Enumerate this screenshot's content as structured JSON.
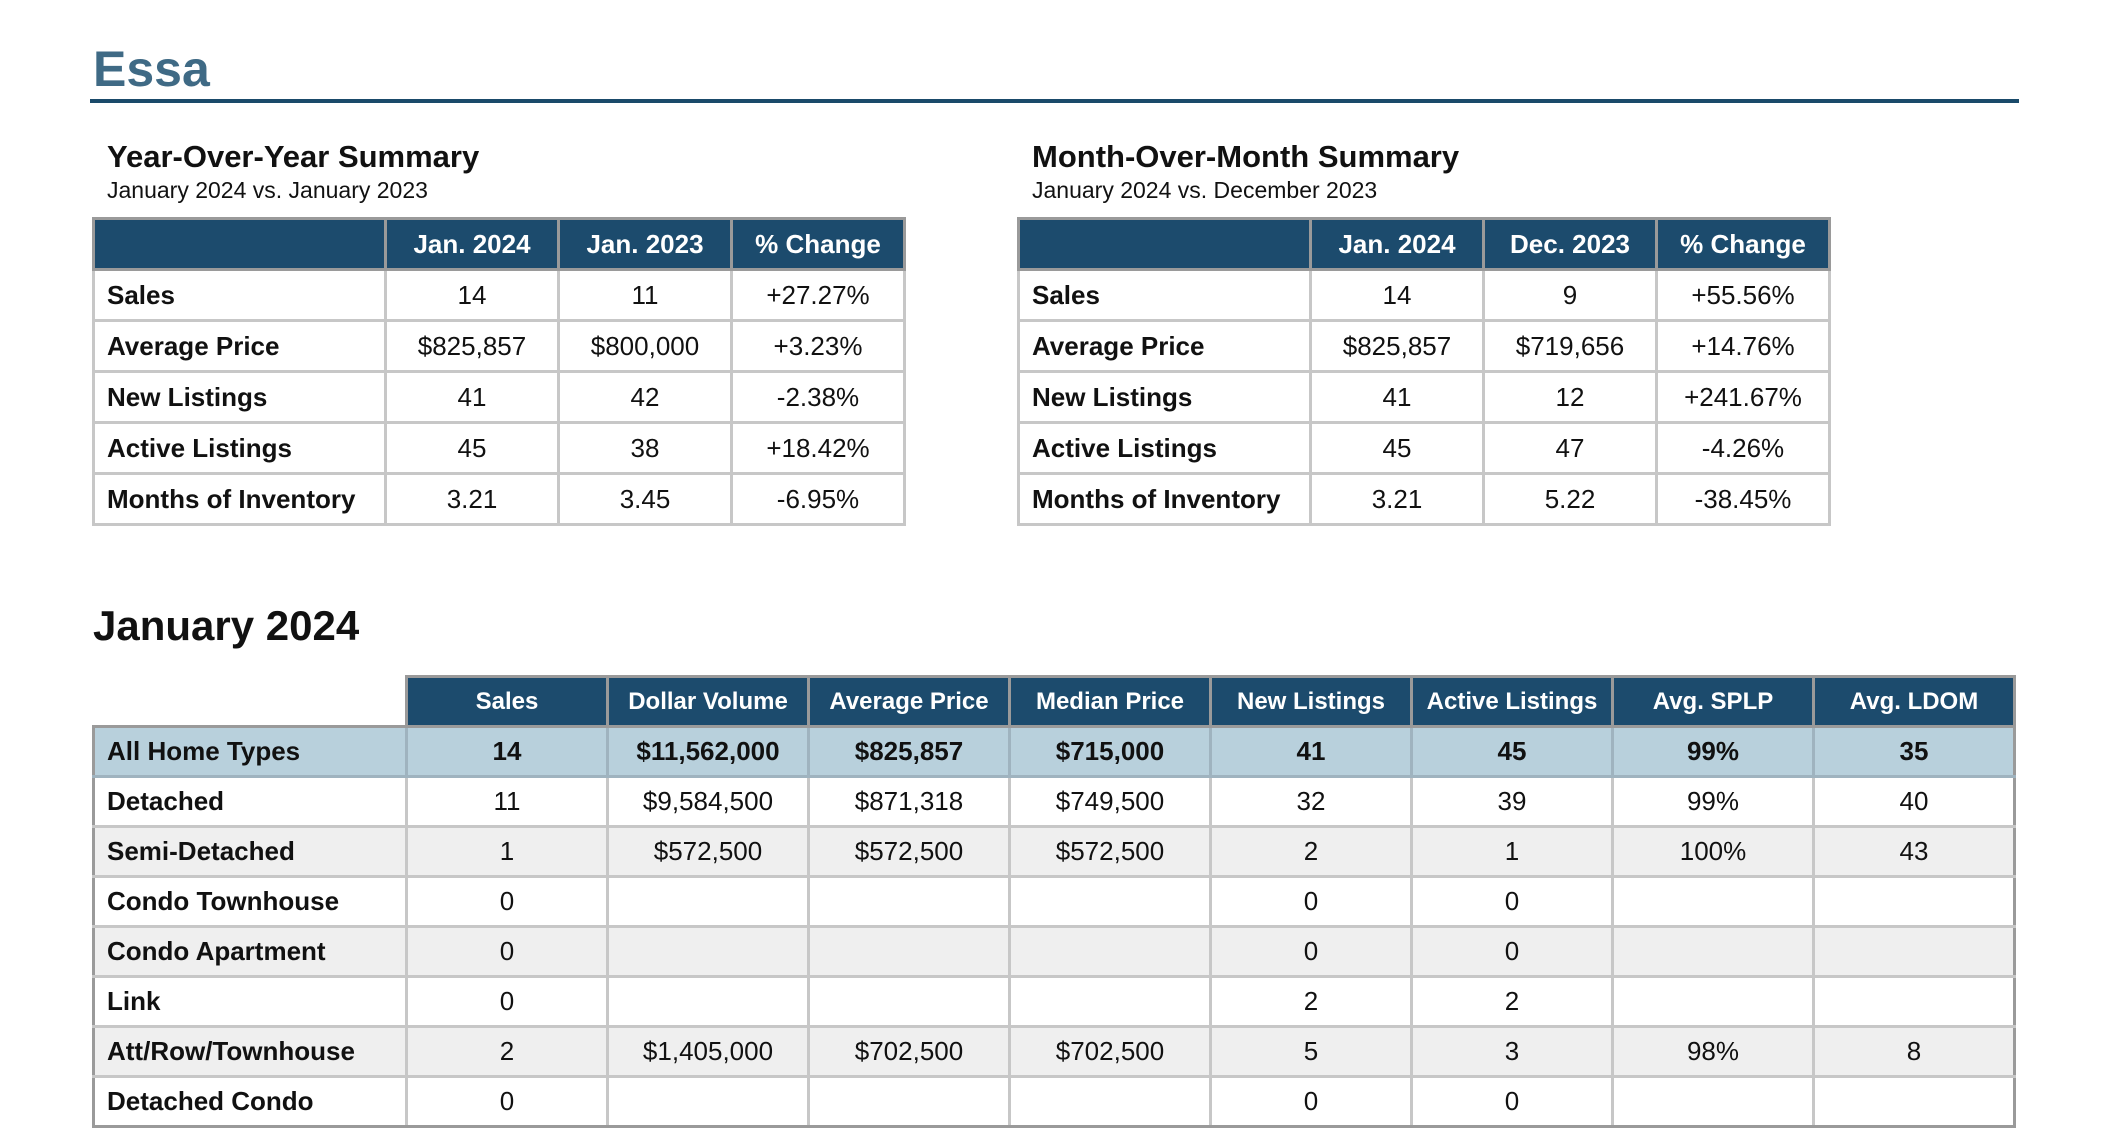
{
  "page": {
    "title": "Essa"
  },
  "yoy": {
    "title": "Year-Over-Year Summary",
    "subtitle": "January 2024 vs. January 2023",
    "columns": [
      "",
      "Jan. 2024",
      "Jan. 2023",
      "% Change"
    ],
    "rows": [
      [
        "Sales",
        "14",
        "11",
        "+27.27%"
      ],
      [
        "Average Price",
        "$825,857",
        "$800,000",
        "+3.23%"
      ],
      [
        "New Listings",
        "41",
        "42",
        "-2.38%"
      ],
      [
        "Active Listings",
        "45",
        "38",
        "+18.42%"
      ],
      [
        "Months of Inventory",
        "3.21",
        "3.45",
        "-6.95%"
      ]
    ]
  },
  "mom": {
    "title": "Month-Over-Month Summary",
    "subtitle": "January 2024 vs. December 2023",
    "columns": [
      "",
      "Jan. 2024",
      "Dec. 2023",
      "% Change"
    ],
    "rows": [
      [
        "Sales",
        "14",
        "9",
        "+55.56%"
      ],
      [
        "Average Price",
        "$825,857",
        "$719,656",
        "+14.76%"
      ],
      [
        "New Listings",
        "41",
        "12",
        "+241.67%"
      ],
      [
        "Active Listings",
        "45",
        "47",
        "-4.26%"
      ],
      [
        "Months of Inventory",
        "3.21",
        "5.22",
        "-38.45%"
      ]
    ]
  },
  "monthly": {
    "title": "January 2024",
    "columns": [
      "",
      "Sales",
      "Dollar Volume",
      "Average Price",
      "Median Price",
      "New Listings",
      "Active Listings",
      "Avg. SPLP",
      "Avg. LDOM"
    ],
    "rows": [
      [
        "All Home Types",
        "14",
        "$11,562,000",
        "$825,857",
        "$715,000",
        "41",
        "45",
        "99%",
        "35"
      ],
      [
        "Detached",
        "11",
        "$9,584,500",
        "$871,318",
        "$749,500",
        "32",
        "39",
        "99%",
        "40"
      ],
      [
        "Semi-Detached",
        "1",
        "$572,500",
        "$572,500",
        "$572,500",
        "2",
        "1",
        "100%",
        "43"
      ],
      [
        "Condo Townhouse",
        "0",
        "",
        "",
        "",
        "0",
        "0",
        "",
        ""
      ],
      [
        "Condo Apartment",
        "0",
        "",
        "",
        "",
        "0",
        "0",
        "",
        ""
      ],
      [
        "Link",
        "0",
        "",
        "",
        "",
        "2",
        "2",
        "",
        ""
      ],
      [
        "Att/Row/Townhouse",
        "2",
        "$1,405,000",
        "$702,500",
        "$702,500",
        "5",
        "3",
        "98%",
        "8"
      ],
      [
        "Detached Condo",
        "0",
        "",
        "",
        "",
        "0",
        "0",
        "",
        ""
      ]
    ]
  }
}
